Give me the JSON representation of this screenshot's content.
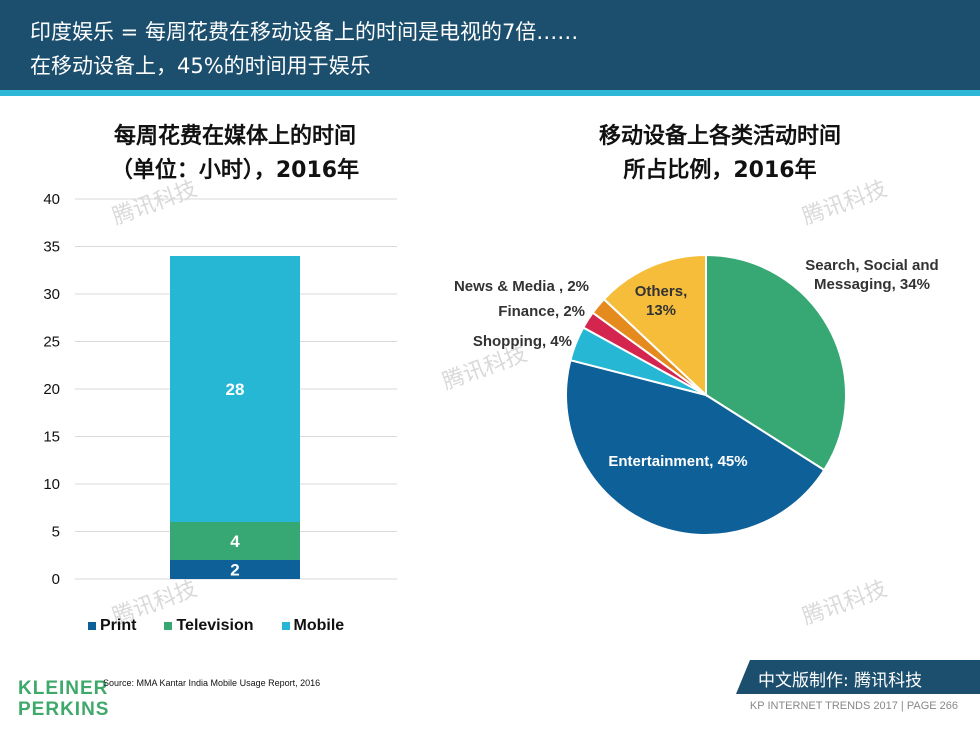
{
  "header": {
    "line1": "印度娱乐 = 每周花费在移动设备上的时间是电视的7倍……",
    "line2": "在移动设备上，45%的时间用于娱乐"
  },
  "footer": {
    "logo_line1": "KLEINER",
    "logo_line2": "PERKINS",
    "source": "Source: MMA Kantar India Mobile Usage Report, 2016",
    "banner": "中文版制作: 腾讯科技",
    "right": "KP INTERNET TRENDS 2017   |   PAGE 266"
  },
  "watermark": "腾讯科技",
  "colors": {
    "header_bg": "#1c4f6e",
    "accent": "#2eb6d6",
    "print": "#0e6098",
    "television": "#37a874",
    "mobile": "#25b7d3",
    "entertainment": "#0e6098",
    "search_social": "#37a874",
    "others": "#f6bd3a",
    "finance": "#e58a1d",
    "news_media": "#d4254f",
    "shopping": "#25b7d3"
  },
  "chart_data": [
    {
      "type": "bar",
      "title_line1": "每周花费在媒体上的时间",
      "title_line2": "（单位：小时），2016年",
      "ylim": [
        0,
        40
      ],
      "yticks": [
        "0",
        "5",
        "10",
        "15",
        "20",
        "25",
        "30",
        "35",
        "40"
      ],
      "grid": true,
      "legend_position": "bottom",
      "stacked": true,
      "series": [
        {
          "name": "Print",
          "value": 2,
          "label": "2",
          "color": "#0e6098"
        },
        {
          "name": "Television",
          "value": 4,
          "label": "4",
          "color": "#37a874"
        },
        {
          "name": "Mobile",
          "value": 28,
          "label": "28",
          "color": "#25b7d3"
        }
      ]
    },
    {
      "type": "pie",
      "title_line1": "移动设备上各类活动时间",
      "title_line2": "所占比例，2016年",
      "slices": [
        {
          "label": "Search, Social and",
          "label2": "Messaging, 34%",
          "value": 34,
          "color": "#37a874"
        },
        {
          "label": "Entertainment, 45%",
          "value": 45,
          "color": "#0e6098"
        },
        {
          "label": "Shopping, 4%",
          "value": 4,
          "color": "#25b7d3"
        },
        {
          "label": "Finance, 2%",
          "value": 2,
          "color": "#d4254f"
        },
        {
          "label": "News & Media , 2%",
          "value": 2,
          "color": "#e58a1d"
        },
        {
          "label": "Others,",
          "label2": "13%",
          "value": 13,
          "color": "#f6bd3a"
        }
      ]
    }
  ]
}
